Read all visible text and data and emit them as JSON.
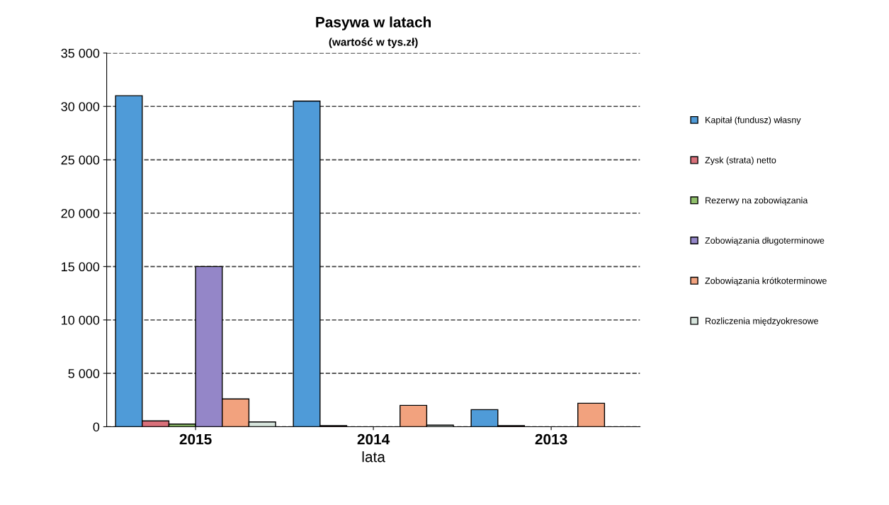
{
  "chart_data": {
    "type": "bar",
    "title": "Pasywa w latach",
    "subtitle": "(wartość w tys.zł)",
    "xlabel": "lata",
    "categories": [
      "2015",
      "2014",
      "2013"
    ],
    "series": [
      {
        "name": "Kapitał (fundusz) własny",
        "color": "#4f9bd8",
        "values": [
          31000,
          30500,
          1600
        ]
      },
      {
        "name": "Zysk (strata) netto",
        "color": "#d9707a",
        "values": [
          550,
          100,
          100
        ]
      },
      {
        "name": "Rezerwy na zobowiązania",
        "color": "#8fbf6a",
        "values": [
          250,
          null,
          null
        ]
      },
      {
        "name": "Zobowiązania długoterminowe",
        "color": "#9486c8",
        "values": [
          15000,
          null,
          null
        ]
      },
      {
        "name": "Zobowiązania krótkoterminowe",
        "color": "#f2a27e",
        "values": [
          2600,
          2000,
          2200
        ]
      },
      {
        "name": "Rozliczenia międzyokresowe",
        "color": "#d6e4dc",
        "values": [
          450,
          150,
          null
        ]
      }
    ],
    "ylim": [
      0,
      35000
    ],
    "yticks": [
      {
        "value": 0,
        "label": "0"
      },
      {
        "value": 5000,
        "label": "5 000"
      },
      {
        "value": 10000,
        "label": "10 000"
      },
      {
        "value": 15000,
        "label": "15 000"
      },
      {
        "value": 20000,
        "label": "20 000"
      },
      {
        "value": 25000,
        "label": "25 000"
      },
      {
        "value": 30000,
        "label": "30 000"
      },
      {
        "value": 35000,
        "label": "35 000"
      }
    ],
    "grid": "y",
    "legend": "right"
  }
}
